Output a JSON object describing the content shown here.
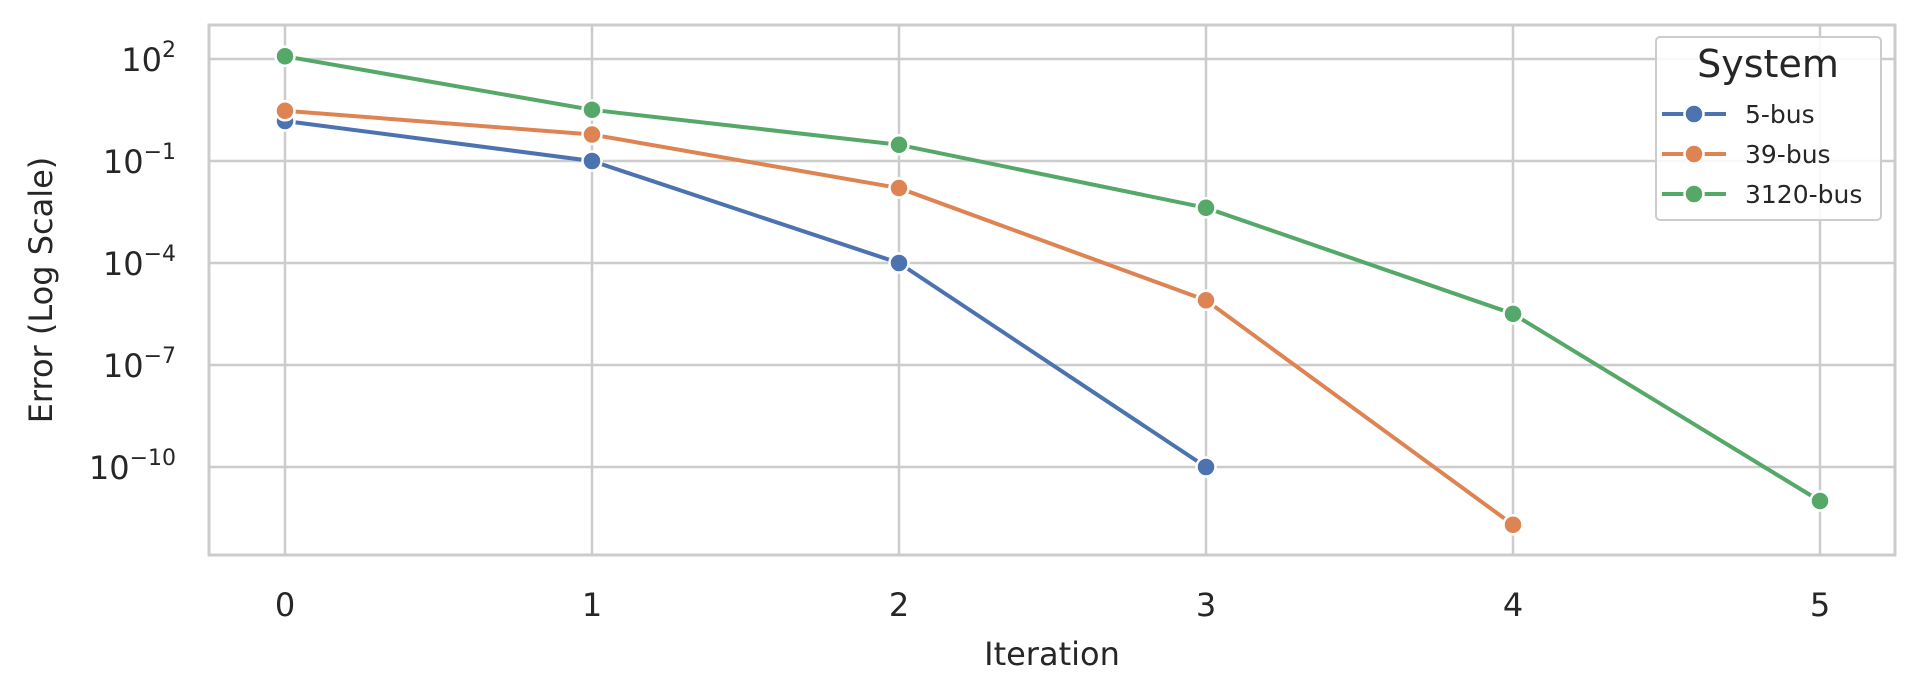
{
  "chart_data": {
    "type": "line",
    "xlabel": "Iteration",
    "ylabel": "Error (Log Scale)",
    "yscale": "log",
    "x": [
      0,
      1,
      2,
      3,
      4,
      5
    ],
    "xlim": [
      -0.25,
      5.25
    ],
    "ylim_log10": [
      -12.6,
      3.0
    ],
    "x_ticks": [
      "0",
      "1",
      "2",
      "3",
      "4",
      "5"
    ],
    "y_ticks": [
      {
        "exp": 2,
        "base": "10",
        "sup": "2"
      },
      {
        "exp": -1,
        "base": "10",
        "sup": "−1"
      },
      {
        "exp": -4,
        "base": "10",
        "sup": "−4"
      },
      {
        "exp": -7,
        "base": "10",
        "sup": "−7"
      },
      {
        "exp": -10,
        "base": "10",
        "sup": "−10"
      }
    ],
    "grid": true,
    "legend": {
      "title": "System",
      "placement": "top-right"
    },
    "series": [
      {
        "name": "5-bus",
        "color": "#4c72b0",
        "x": [
          0,
          1,
          2,
          3
        ],
        "values": [
          1.5,
          0.1,
          0.0001,
          1e-10
        ]
      },
      {
        "name": "39-bus",
        "color": "#dd8452",
        "x": [
          0,
          1,
          2,
          3,
          4
        ],
        "values": [
          3.0,
          0.6,
          0.016,
          8e-06,
          2e-12
        ]
      },
      {
        "name": "3120-bus",
        "color": "#55a868",
        "x": [
          0,
          1,
          2,
          3,
          4,
          5
        ],
        "values": [
          120,
          3.2,
          0.3,
          0.0042,
          3.2e-06,
          1e-11
        ]
      }
    ]
  }
}
